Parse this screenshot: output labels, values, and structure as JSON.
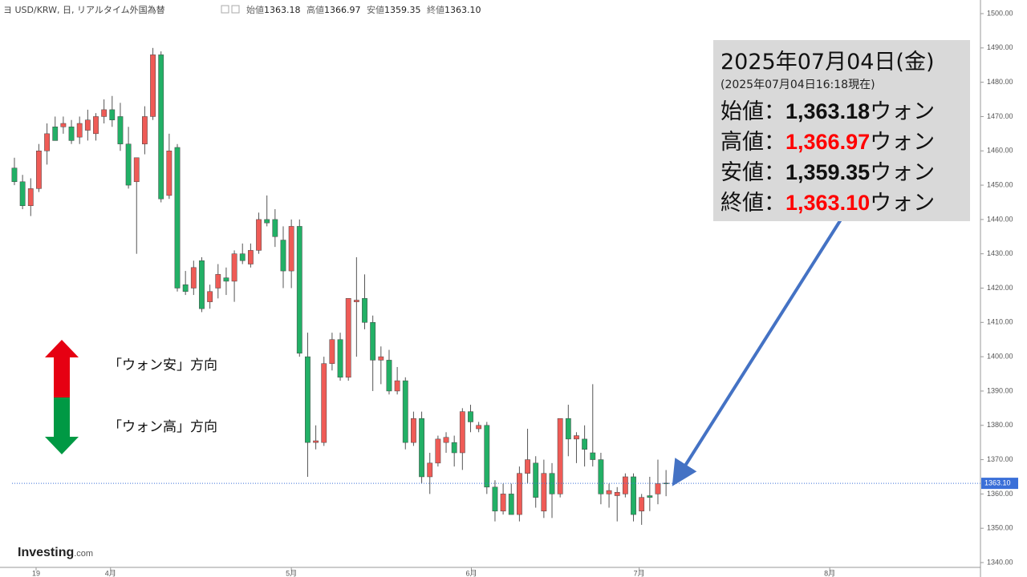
{
  "header": {
    "symbol": "ヨ USD/KRW, 日, リアルタイム外国為替",
    "ohlc": [
      {
        "label": "始値",
        "value": "1363.18"
      },
      {
        "label": "高値",
        "value": "1366.97"
      },
      {
        "label": "安値",
        "value": "1359.35"
      },
      {
        "label": "終値",
        "value": "1363.10"
      }
    ]
  },
  "info_box": {
    "date": "2025年07月04日(金)",
    "as_of": "(2025年07月04日16:18現在)",
    "rows": [
      {
        "label": "始値：",
        "value": "1,363.18",
        "unit": "ウォン",
        "color": "#111111"
      },
      {
        "label": "高値：",
        "value": "1,366.97",
        "unit": "ウォン",
        "color": "#ff0000"
      },
      {
        "label": "安値：",
        "value": "1,359.35",
        "unit": "ウォン",
        "color": "#111111"
      },
      {
        "label": "終値：",
        "value": "1,363.10",
        "unit": "ウォン",
        "color": "#ff0000"
      }
    ]
  },
  "direction_labels": {
    "up": "「ウォン安」方向",
    "down": "「ウォン高」方向"
  },
  "logo": {
    "brand": "Investing",
    "suffix": ".com"
  },
  "chart_data": {
    "type": "candlestick",
    "x": [
      0,
      1,
      2,
      3,
      4,
      5,
      6,
      7,
      8,
      9,
      10,
      11,
      12,
      13,
      14,
      15,
      16,
      17,
      18,
      19,
      20,
      21,
      22,
      23,
      24,
      25,
      26,
      27,
      28,
      29,
      30,
      31,
      32,
      33,
      34,
      35,
      36,
      37,
      38,
      39,
      40,
      41,
      42,
      43,
      44,
      45,
      46,
      47,
      48,
      49,
      50,
      51,
      52,
      53,
      54,
      55,
      56,
      57,
      58,
      59,
      60,
      61,
      62,
      63,
      64,
      65,
      66,
      67,
      68,
      69,
      70,
      71,
      72,
      73,
      74,
      75,
      76,
      77,
      78,
      79,
      80
    ],
    "open": [
      1455,
      1451,
      1444,
      1449,
      1460,
      1467,
      1467,
      1467,
      1464,
      1466,
      1465,
      1470,
      1472,
      1470,
      1462,
      1451,
      1462,
      1470,
      1488,
      1447,
      1461,
      1421,
      1420,
      1428,
      1416,
      1420,
      1423,
      1422,
      1430,
      1427,
      1431,
      1440,
      1440,
      1434,
      1425,
      1438,
      1400,
      1375,
      1375,
      1398,
      1405,
      1394,
      1416,
      1417,
      1410,
      1399,
      1399,
      1390,
      1393,
      1375,
      1382,
      1365,
      1369,
      1375,
      1375,
      1372,
      1384,
      1379,
      1380,
      1362,
      1355,
      1360,
      1354,
      1366,
      1369,
      1355,
      1366,
      1360,
      1382,
      1376,
      1376,
      1372,
      1370,
      1360,
      1359.5,
      1360,
      1365,
      1355,
      1359.5,
      1360,
      1363.18
    ],
    "high": [
      1458,
      1453,
      1452,
      1462,
      1468,
      1470,
      1470,
      1469,
      1470,
      1472,
      1471,
      1475,
      1476,
      1474,
      1467,
      1458,
      1473,
      1490,
      1489,
      1465,
      1462,
      1425,
      1428,
      1429,
      1421,
      1427,
      1426,
      1431,
      1433,
      1433,
      1442,
      1447,
      1443,
      1438,
      1440,
      1440,
      1407,
      1380,
      1400,
      1407,
      1407,
      1417,
      1429,
      1424,
      1412,
      1403,
      1402,
      1397,
      1394,
      1384,
      1384,
      1372,
      1377,
      1378,
      1377,
      1385,
      1386,
      1381,
      1381,
      1364,
      1363,
      1363,
      1368,
      1379,
      1371,
      1370,
      1369,
      1382,
      1386,
      1378,
      1380,
      1392,
      1372,
      1363,
      1362,
      1366,
      1366,
      1360,
      1365,
      1370,
      1366.97
    ],
    "low": [
      1450,
      1443,
      1441,
      1448,
      1456,
      1463,
      1465,
      1462,
      1462,
      1463,
      1463,
      1468,
      1467,
      1460,
      1449,
      1430,
      1459,
      1469,
      1445,
      1446,
      1419,
      1418,
      1418,
      1413,
      1414,
      1417,
      1418,
      1416,
      1427,
      1426,
      1430,
      1438,
      1432,
      1420,
      1420,
      1400,
      1365,
      1373,
      1374,
      1396,
      1393,
      1393,
      1400,
      1408,
      1390,
      1392,
      1389,
      1389,
      1373,
      1374,
      1363,
      1360,
      1368,
      1372,
      1368,
      1367,
      1378,
      1378,
      1360,
      1352,
      1354,
      1354,
      1352,
      1363,
      1356,
      1353,
      1353,
      1359,
      1371,
      1369,
      1368,
      1368,
      1357,
      1356,
      1352,
      1359,
      1352,
      1351,
      1355,
      1357,
      1359.35
    ],
    "close": [
      1451,
      1444,
      1449,
      1460,
      1465,
      1463,
      1468,
      1463,
      1468,
      1469,
      1470,
      1472,
      1469,
      1462,
      1450,
      1458,
      1470,
      1488,
      1446,
      1460,
      1420,
      1419,
      1426,
      1414,
      1419,
      1424,
      1422,
      1430,
      1428,
      1431,
      1440,
      1439,
      1435,
      1425,
      1438,
      1401,
      1375,
      1375.5,
      1398,
      1405,
      1394,
      1417,
      1416.5,
      1410,
      1399,
      1400,
      1390,
      1393,
      1375,
      1382,
      1365,
      1369,
      1376,
      1376.5,
      1372,
      1384,
      1381,
      1380,
      1362,
      1355,
      1360,
      1354,
      1366,
      1370,
      1359,
      1366,
      1360,
      1382,
      1376,
      1377,
      1373,
      1370,
      1360,
      1361,
      1360.5,
      1365,
      1354,
      1359,
      1359,
      1363,
      1363.1
    ],
    "up_color": "#ef5b56",
    "down_color": "#22b066",
    "xlim": [
      -1.77,
      118.6
    ],
    "xticks": [
      {
        "value": 2.66,
        "label": "19"
      },
      {
        "value": 11.8,
        "label": "4月"
      },
      {
        "value": 34,
        "label": "5月"
      },
      {
        "value": 56.1,
        "label": "6月"
      },
      {
        "value": 76.7,
        "label": "7月"
      },
      {
        "value": 100.1,
        "label": "8月"
      }
    ],
    "ylim": [
      1340,
      1500
    ],
    "yticks": [
      {
        "value": 1340,
        "label": "1340.00"
      },
      {
        "value": 1350,
        "label": "1350.00"
      },
      {
        "value": 1360,
        "label": "1360.00"
      },
      {
        "value": 1370,
        "label": "1370.00"
      },
      {
        "value": 1380,
        "label": "1380.00"
      },
      {
        "value": 1390,
        "label": "1390.00"
      },
      {
        "value": 1400,
        "label": "1400.00"
      },
      {
        "value": 1410,
        "label": "1410.00"
      },
      {
        "value": 1420,
        "label": "1420.00"
      },
      {
        "value": 1430,
        "label": "1430.00"
      },
      {
        "value": 1440,
        "label": "1440.00"
      },
      {
        "value": 1450,
        "label": "1450.00"
      },
      {
        "value": 1460,
        "label": "1460.00"
      },
      {
        "value": 1470,
        "label": "1470.00"
      },
      {
        "value": 1480,
        "label": "1480.00"
      },
      {
        "value": 1490,
        "label": "1490.00"
      },
      {
        "value": 1500,
        "label": "1500.00"
      }
    ],
    "price_line": {
      "value": 1363.1,
      "label": "1363.10",
      "color": "#3a6fd8"
    }
  }
}
